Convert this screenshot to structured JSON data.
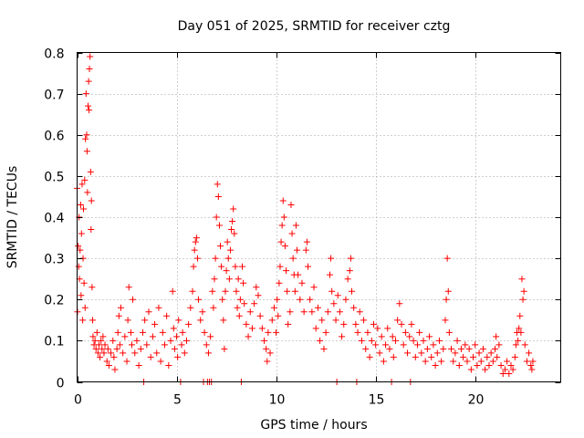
{
  "chart_data": {
    "type": "scatter",
    "title": "Day 051 of 2025, SRMTID for receiver cztg",
    "xlabel": "GPS time / hours",
    "ylabel": "SRMTID / TECUs",
    "xlim": [
      0,
      24.3
    ],
    "ylim": [
      0,
      0.8
    ],
    "xticks": [
      0,
      5,
      10,
      15,
      20
    ],
    "xtick_labels": [
      "0",
      "5",
      "10",
      "15",
      "20"
    ],
    "yticks": [
      0,
      0.1,
      0.2,
      0.3,
      0.4,
      0.5,
      0.6,
      0.7,
      0.8
    ],
    "ytick_labels": [
      "0",
      "0.1",
      "0.2",
      "0.3",
      "0.4",
      "0.5",
      "0.6",
      "0.7",
      "0.8"
    ],
    "grid": true,
    "marker": "plus",
    "color": "#ff0000",
    "series": [
      {
        "name": "SRMTID",
        "points": [
          [
            0.0,
            0.47
          ],
          [
            0.02,
            0.17
          ],
          [
            0.05,
            0.33
          ],
          [
            0.08,
            0.28
          ],
          [
            0.1,
            0.4
          ],
          [
            0.12,
            0.25
          ],
          [
            0.15,
            0.32
          ],
          [
            0.18,
            0.43
          ],
          [
            0.2,
            0.21
          ],
          [
            0.22,
            0.36
          ],
          [
            0.25,
            0.48
          ],
          [
            0.28,
            0.15
          ],
          [
            0.3,
            0.3
          ],
          [
            0.32,
            0.42
          ],
          [
            0.35,
            0.24
          ],
          [
            0.38,
            0.49
          ],
          [
            0.4,
            0.18
          ],
          [
            0.42,
            0.59
          ],
          [
            0.45,
            0.7
          ],
          [
            0.48,
            0.6
          ],
          [
            0.5,
            0.56
          ],
          [
            0.52,
            0.46
          ],
          [
            0.55,
            0.67
          ],
          [
            0.58,
            0.73
          ],
          [
            0.6,
            0.66
          ],
          [
            0.62,
            0.76
          ],
          [
            0.65,
            0.79
          ],
          [
            0.68,
            0.51
          ],
          [
            0.7,
            0.37
          ],
          [
            0.72,
            0.44
          ],
          [
            0.75,
            0.23
          ],
          [
            0.78,
            0.15
          ],
          [
            0.8,
            0.11
          ],
          [
            0.85,
            0.09
          ],
          [
            0.9,
            0.1
          ],
          [
            0.95,
            0.08
          ],
          [
            1.0,
            0.12
          ],
          [
            1.05,
            0.07
          ],
          [
            1.1,
            0.09
          ],
          [
            1.15,
            0.06
          ],
          [
            1.2,
            0.1
          ],
          [
            1.25,
            0.08
          ],
          [
            1.3,
            0.11
          ],
          [
            1.35,
            0.07
          ],
          [
            1.4,
            0.09
          ],
          [
            1.5,
            0.05
          ],
          [
            1.55,
            0.08
          ],
          [
            1.6,
            0.04
          ],
          [
            1.7,
            0.07
          ],
          [
            1.8,
            0.1
          ],
          [
            1.85,
            0.06
          ],
          [
            1.9,
            0.03
          ],
          [
            2.0,
            0.08
          ],
          [
            2.05,
            0.12
          ],
          [
            2.1,
            0.16
          ],
          [
            2.15,
            0.09
          ],
          [
            2.2,
            0.18
          ],
          [
            2.3,
            0.07
          ],
          [
            2.4,
            0.11
          ],
          [
            2.5,
            0.05
          ],
          [
            2.55,
            0.15
          ],
          [
            2.6,
            0.23
          ],
          [
            2.7,
            0.12
          ],
          [
            2.75,
            0.09
          ],
          [
            2.8,
            0.2
          ],
          [
            2.9,
            0.07
          ],
          [
            3.0,
            0.1
          ],
          [
            3.1,
            0.04
          ],
          [
            3.2,
            0.08
          ],
          [
            3.3,
            0.12
          ],
          [
            3.35,
            0.0
          ],
          [
            3.4,
            0.15
          ],
          [
            3.5,
            0.09
          ],
          [
            3.6,
            0.17
          ],
          [
            3.7,
            0.06
          ],
          [
            3.8,
            0.11
          ],
          [
            3.9,
            0.14
          ],
          [
            4.0,
            0.07
          ],
          [
            4.1,
            0.18
          ],
          [
            4.2,
            0.05
          ],
          [
            4.3,
            0.12
          ],
          [
            4.4,
            0.09
          ],
          [
            4.5,
            0.16
          ],
          [
            4.6,
            0.04
          ],
          [
            4.7,
            0.1
          ],
          [
            4.8,
            0.22
          ],
          [
            4.85,
            0.13
          ],
          [
            4.9,
            0.08
          ],
          [
            5.0,
            0.11
          ],
          [
            5.05,
            0.06
          ],
          [
            5.1,
            0.15
          ],
          [
            5.2,
            0.0
          ],
          [
            5.25,
            0.09
          ],
          [
            5.3,
            0.12
          ],
          [
            5.4,
            0.07
          ],
          [
            5.5,
            0.1
          ],
          [
            5.6,
            0.14
          ],
          [
            5.7,
            0.18
          ],
          [
            5.8,
            0.22
          ],
          [
            5.85,
            0.28
          ],
          [
            5.9,
            0.32
          ],
          [
            5.95,
            0.34
          ],
          [
            6.0,
            0.35
          ],
          [
            6.05,
            0.3
          ],
          [
            6.1,
            0.2
          ],
          [
            6.2,
            0.15
          ],
          [
            6.3,
            0.17
          ],
          [
            6.35,
            0.0
          ],
          [
            6.4,
            0.12
          ],
          [
            6.5,
            0.09
          ],
          [
            6.55,
            0.0
          ],
          [
            6.6,
            0.07
          ],
          [
            6.65,
            0.0
          ],
          [
            6.7,
            0.11
          ],
          [
            6.75,
            0.0
          ],
          [
            6.8,
            0.22
          ],
          [
            6.85,
            0.18
          ],
          [
            6.9,
            0.25
          ],
          [
            6.95,
            0.3
          ],
          [
            7.0,
            0.4
          ],
          [
            7.05,
            0.48
          ],
          [
            7.1,
            0.45
          ],
          [
            7.15,
            0.38
          ],
          [
            7.2,
            0.33
          ],
          [
            7.25,
            0.28
          ],
          [
            7.3,
            0.2
          ],
          [
            7.35,
            0.15
          ],
          [
            7.4,
            0.08
          ],
          [
            7.45,
            0.22
          ],
          [
            7.5,
            0.27
          ],
          [
            7.55,
            0.34
          ],
          [
            7.6,
            0.3
          ],
          [
            7.65,
            0.25
          ],
          [
            7.7,
            0.32
          ],
          [
            7.75,
            0.37
          ],
          [
            7.8,
            0.39
          ],
          [
            7.85,
            0.42
          ],
          [
            7.9,
            0.36
          ],
          [
            7.95,
            0.28
          ],
          [
            8.0,
            0.22
          ],
          [
            8.05,
            0.18
          ],
          [
            8.1,
            0.25
          ],
          [
            8.15,
            0.16
          ],
          [
            8.2,
            0.2
          ],
          [
            8.25,
            0.0
          ],
          [
            8.3,
            0.28
          ],
          [
            8.35,
            0.24
          ],
          [
            8.4,
            0.19
          ],
          [
            8.5,
            0.14
          ],
          [
            8.6,
            0.11
          ],
          [
            8.7,
            0.17
          ],
          [
            8.8,
            0.13
          ],
          [
            8.9,
            0.19
          ],
          [
            9.0,
            0.23
          ],
          [
            9.1,
            0.21
          ],
          [
            9.2,
            0.16
          ],
          [
            9.3,
            0.13
          ],
          [
            9.4,
            0.1
          ],
          [
            9.5,
            0.08
          ],
          [
            9.55,
            0.05
          ],
          [
            9.6,
            0.12
          ],
          [
            9.7,
            0.07
          ],
          [
            9.8,
            0.15
          ],
          [
            9.9,
            0.18
          ],
          [
            10.0,
            0.12
          ],
          [
            10.05,
            0.2
          ],
          [
            10.1,
            0.16
          ],
          [
            10.15,
            0.24
          ],
          [
            10.2,
            0.28
          ],
          [
            10.25,
            0.34
          ],
          [
            10.3,
            0.38
          ],
          [
            10.35,
            0.44
          ],
          [
            10.4,
            0.4
          ],
          [
            10.45,
            0.33
          ],
          [
            10.5,
            0.27
          ],
          [
            10.55,
            0.22
          ],
          [
            10.6,
            0.14
          ],
          [
            10.7,
            0.17
          ],
          [
            10.75,
            0.43
          ],
          [
            10.8,
            0.36
          ],
          [
            10.85,
            0.3
          ],
          [
            10.9,
            0.26
          ],
          [
            10.95,
            0.22
          ],
          [
            11.0,
            0.38
          ],
          [
            11.05,
            0.32
          ],
          [
            11.1,
            0.26
          ],
          [
            11.2,
            0.2
          ],
          [
            11.3,
            0.24
          ],
          [
            11.4,
            0.17
          ],
          [
            11.5,
            0.32
          ],
          [
            11.55,
            0.34
          ],
          [
            11.6,
            0.28
          ],
          [
            11.7,
            0.2
          ],
          [
            11.8,
            0.17
          ],
          [
            11.9,
            0.23
          ],
          [
            12.0,
            0.13
          ],
          [
            12.1,
            0.18
          ],
          [
            12.2,
            0.1
          ],
          [
            12.3,
            0.15
          ],
          [
            12.4,
            0.08
          ],
          [
            12.5,
            0.12
          ],
          [
            12.6,
            0.17
          ],
          [
            12.7,
            0.26
          ],
          [
            12.75,
            0.3
          ],
          [
            12.8,
            0.22
          ],
          [
            12.9,
            0.19
          ],
          [
            13.0,
            0.15
          ],
          [
            13.05,
            0.0
          ],
          [
            13.1,
            0.21
          ],
          [
            13.2,
            0.17
          ],
          [
            13.3,
            0.11
          ],
          [
            13.4,
            0.14
          ],
          [
            13.5,
            0.2
          ],
          [
            13.6,
            0.25
          ],
          [
            13.7,
            0.27
          ],
          [
            13.75,
            0.3
          ],
          [
            13.8,
            0.22
          ],
          [
            13.9,
            0.18
          ],
          [
            14.0,
            0.14
          ],
          [
            14.05,
            0.0
          ],
          [
            14.1,
            0.12
          ],
          [
            14.2,
            0.17
          ],
          [
            14.3,
            0.1
          ],
          [
            14.4,
            0.15
          ],
          [
            14.5,
            0.08
          ],
          [
            14.6,
            0.12
          ],
          [
            14.7,
            0.06
          ],
          [
            14.8,
            0.1
          ],
          [
            14.9,
            0.14
          ],
          [
            15.0,
            0.09
          ],
          [
            15.1,
            0.13
          ],
          [
            15.2,
            0.07
          ],
          [
            15.3,
            0.11
          ],
          [
            15.4,
            0.05
          ],
          [
            15.5,
            0.09
          ],
          [
            15.6,
            0.13
          ],
          [
            15.7,
            0.08
          ],
          [
            15.8,
            0.0
          ],
          [
            15.85,
            0.11
          ],
          [
            15.9,
            0.06
          ],
          [
            16.0,
            0.1
          ],
          [
            16.1,
            0.15
          ],
          [
            16.2,
            0.19
          ],
          [
            16.3,
            0.14
          ],
          [
            16.4,
            0.09
          ],
          [
            16.5,
            0.12
          ],
          [
            16.6,
            0.07
          ],
          [
            16.7,
            0.11
          ],
          [
            16.75,
            0.0
          ],
          [
            16.8,
            0.14
          ],
          [
            16.9,
            0.1
          ],
          [
            17.0,
            0.06
          ],
          [
            17.1,
            0.09
          ],
          [
            17.2,
            0.12
          ],
          [
            17.3,
            0.07
          ],
          [
            17.4,
            0.1
          ],
          [
            17.5,
            0.05
          ],
          [
            17.6,
            0.08
          ],
          [
            17.7,
            0.11
          ],
          [
            17.8,
            0.06
          ],
          [
            17.9,
            0.09
          ],
          [
            18.0,
            0.04
          ],
          [
            18.1,
            0.07
          ],
          [
            18.2,
            0.1
          ],
          [
            18.3,
            0.05
          ],
          [
            18.4,
            0.08
          ],
          [
            18.5,
            0.15
          ],
          [
            18.55,
            0.2
          ],
          [
            18.6,
            0.3
          ],
          [
            18.65,
            0.22
          ],
          [
            18.7,
            0.12
          ],
          [
            18.8,
            0.08
          ],
          [
            18.9,
            0.05
          ],
          [
            19.0,
            0.07
          ],
          [
            19.1,
            0.1
          ],
          [
            19.2,
            0.04
          ],
          [
            19.3,
            0.08
          ],
          [
            19.4,
            0.06
          ],
          [
            19.5,
            0.09
          ],
          [
            19.6,
            0.05
          ],
          [
            19.7,
            0.08
          ],
          [
            19.8,
            0.03
          ],
          [
            19.9,
            0.06
          ],
          [
            20.0,
            0.09
          ],
          [
            20.1,
            0.04
          ],
          [
            20.2,
            0.07
          ],
          [
            20.3,
            0.05
          ],
          [
            20.4,
            0.08
          ],
          [
            20.5,
            0.03
          ],
          [
            20.6,
            0.06
          ],
          [
            20.7,
            0.04
          ],
          [
            20.8,
            0.07
          ],
          [
            20.9,
            0.05
          ],
          [
            21.0,
            0.08
          ],
          [
            21.05,
            0.11
          ],
          [
            21.1,
            0.06
          ],
          [
            21.2,
            0.09
          ],
          [
            21.3,
            0.04
          ],
          [
            21.4,
            0.02
          ],
          [
            21.5,
            0.03
          ],
          [
            21.6,
            0.05
          ],
          [
            21.7,
            0.02
          ],
          [
            21.8,
            0.04
          ],
          [
            21.9,
            0.03
          ],
          [
            22.0,
            0.06
          ],
          [
            22.05,
            0.09
          ],
          [
            22.1,
            0.12
          ],
          [
            22.15,
            0.1
          ],
          [
            22.2,
            0.13
          ],
          [
            22.25,
            0.16
          ],
          [
            22.3,
            0.12
          ],
          [
            22.35,
            0.25
          ],
          [
            22.4,
            0.2
          ],
          [
            22.45,
            0.22
          ],
          [
            22.5,
            0.09
          ],
          [
            22.6,
            0.05
          ],
          [
            22.7,
            0.07
          ],
          [
            22.8,
            0.04
          ],
          [
            22.85,
            0.03
          ],
          [
            22.9,
            0.05
          ]
        ]
      }
    ]
  }
}
